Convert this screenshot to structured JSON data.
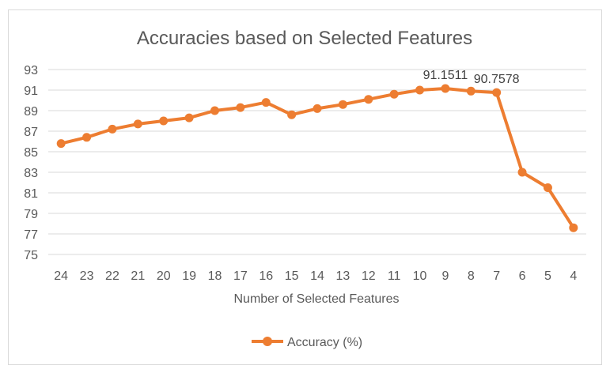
{
  "chart_data": {
    "type": "line",
    "title": "Accuracies based on Selected Features",
    "xlabel": "Number of Selected Features",
    "ylabel": "",
    "categories": [
      "24",
      "23",
      "22",
      "21",
      "20",
      "19",
      "18",
      "17",
      "16",
      "15",
      "14",
      "13",
      "12",
      "11",
      "10",
      "9",
      "8",
      "7",
      "6",
      "5",
      "4"
    ],
    "series": [
      {
        "name": "Accuracy (%)",
        "color": "#ED7D31",
        "values": [
          85.8,
          86.4,
          87.2,
          87.7,
          88.0,
          88.3,
          89.0,
          89.3,
          89.8,
          88.6,
          89.2,
          89.6,
          90.1,
          90.6,
          91.0,
          91.1511,
          90.9,
          90.7578,
          83.0,
          81.5,
          77.6
        ]
      }
    ],
    "data_labels": [
      {
        "category": "9",
        "text": "91.1511"
      },
      {
        "category": "7",
        "text": "90.7578"
      }
    ],
    "ylim": [
      75,
      93
    ],
    "yticks": [
      75,
      77,
      79,
      81,
      83,
      85,
      87,
      89,
      91,
      93
    ],
    "grid": true,
    "legend": "bottom"
  }
}
